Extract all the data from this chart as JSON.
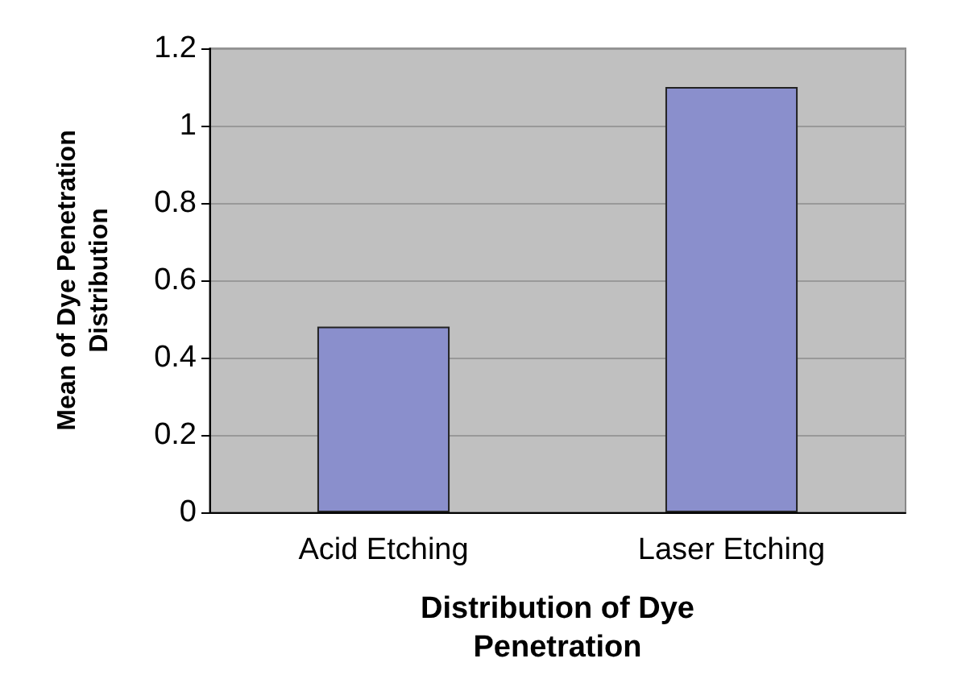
{
  "chart_data": {
    "type": "bar",
    "xlabel": "Distribution of Dye\nPenetration",
    "ylabel": "Mean of Dye Penetration\nDistribution",
    "categories": [
      "Acid Etching",
      "Laser Etching"
    ],
    "values": [
      0.48,
      1.1
    ],
    "color": "#8a8fcc",
    "ylim": [
      0,
      1.2
    ],
    "yticks": [
      0,
      0.2,
      0.4,
      0.6,
      0.8,
      1,
      1.2
    ],
    "grid": "y"
  }
}
